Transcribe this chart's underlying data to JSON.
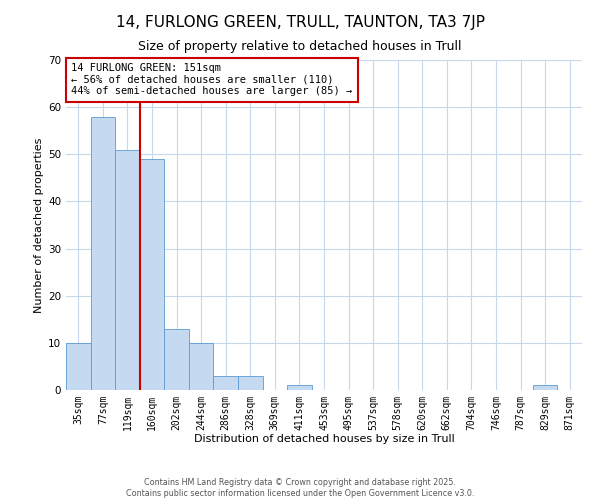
{
  "title": "14, FURLONG GREEN, TRULL, TAUNTON, TA3 7JP",
  "subtitle": "Size of property relative to detached houses in Trull",
  "xlabel": "Distribution of detached houses by size in Trull",
  "ylabel": "Number of detached properties",
  "bin_labels": [
    "35sqm",
    "77sqm",
    "119sqm",
    "160sqm",
    "202sqm",
    "244sqm",
    "286sqm",
    "328sqm",
    "369sqm",
    "411sqm",
    "453sqm",
    "495sqm",
    "537sqm",
    "578sqm",
    "620sqm",
    "662sqm",
    "704sqm",
    "746sqm",
    "787sqm",
    "829sqm",
    "871sqm"
  ],
  "bar_values": [
    10,
    58,
    51,
    49,
    13,
    10,
    3,
    3,
    0,
    1,
    0,
    0,
    0,
    0,
    0,
    0,
    0,
    0,
    0,
    1,
    0
  ],
  "bar_color": "#c5d9f1",
  "bar_edge_color": "#5b9bd5",
  "vline_color": "#cc0000",
  "vline_index": 2.5,
  "ylim": [
    0,
    70
  ],
  "yticks": [
    0,
    10,
    20,
    30,
    40,
    50,
    60,
    70
  ],
  "annotation_title": "14 FURLONG GREEN: 151sqm",
  "annotation_line1": "← 56% of detached houses are smaller (110)",
  "annotation_line2": "44% of semi-detached houses are larger (85) →",
  "annotation_box_color": "#ffffff",
  "annotation_box_edge": "#cc0000",
  "footer1": "Contains HM Land Registry data © Crown copyright and database right 2025.",
  "footer2": "Contains public sector information licensed under the Open Government Licence v3.0.",
  "background_color": "#ffffff",
  "grid_color": "#c8d8ec",
  "title_fontsize": 11,
  "subtitle_fontsize": 9,
  "axis_label_fontsize": 8,
  "tick_fontsize": 7,
  "annotation_fontsize": 7.5,
  "footer_fontsize": 5.8
}
